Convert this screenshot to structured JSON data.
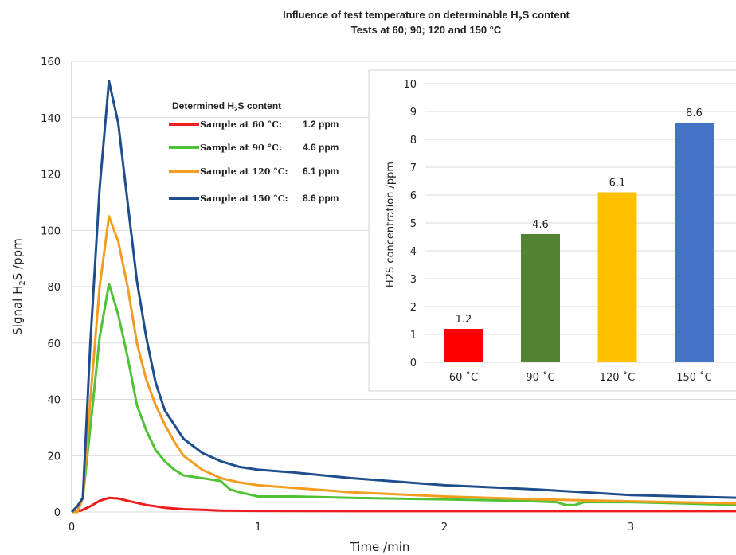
{
  "chart_data": [
    {
      "type": "line",
      "title_line1_parts": [
        "Influence of test temperature on determinable H",
        "2",
        "S content"
      ],
      "title_line2": "Tests at 60; 90; 120 and 150 °C",
      "xlabel": "Time /min",
      "ylabel_parts": [
        "Signal H",
        "2",
        "S /ppm"
      ],
      "xlim": [
        0,
        3.6
      ],
      "ylim": [
        0,
        160
      ],
      "x_ticks": [
        "0",
        "1",
        "2",
        "3"
      ],
      "y_ticks": [
        "0",
        "20",
        "40",
        "60",
        "80",
        "100",
        "120",
        "140",
        "160"
      ],
      "grid": "horizontal",
      "legend": {
        "title_parts": [
          "Determined H",
          "2",
          "S content"
        ],
        "placement": "top-left inside plot",
        "entries": [
          {
            "label": "Sample at  60 °C:",
            "value": "1.2 ppm",
            "series": 0
          },
          {
            "label": "Sample at  90 °C:",
            "value": "4.6 ppm",
            "series": 1
          },
          {
            "label": "Sample at 120 °C:",
            "value": "6.1 ppm",
            "series": 2
          },
          {
            "label": "Sample at 150 °C:",
            "value": "8.6 ppm",
            "series": 3
          }
        ]
      },
      "series": [
        {
          "color": "#ee1c1c",
          "points": [
            [
              0,
              0
            ],
            [
              0.05,
              0.5
            ],
            [
              0.1,
              2
            ],
            [
              0.15,
              4
            ],
            [
              0.2,
              5
            ],
            [
              0.25,
              4.8
            ],
            [
              0.3,
              4
            ],
            [
              0.4,
              2.5
            ],
            [
              0.5,
              1.5
            ],
            [
              0.6,
              1
            ],
            [
              0.7,
              0.8
            ],
            [
              0.8,
              0.5
            ],
            [
              1,
              0.4
            ],
            [
              1.5,
              0.3
            ],
            [
              2,
              0.3
            ],
            [
              2.5,
              0.3
            ],
            [
              3,
              0.3
            ],
            [
              3.6,
              0.3
            ]
          ]
        },
        {
          "color": "#4fc236",
          "points": [
            [
              0,
              0
            ],
            [
              0.03,
              0
            ],
            [
              0.06,
              5
            ],
            [
              0.1,
              30
            ],
            [
              0.15,
              62
            ],
            [
              0.2,
              81
            ],
            [
              0.25,
              70
            ],
            [
              0.3,
              55
            ],
            [
              0.35,
              38
            ],
            [
              0.4,
              29
            ],
            [
              0.45,
              22
            ],
            [
              0.5,
              18
            ],
            [
              0.55,
              15
            ],
            [
              0.6,
              13
            ],
            [
              0.7,
              12
            ],
            [
              0.8,
              11
            ],
            [
              0.85,
              8
            ],
            [
              0.9,
              7
            ],
            [
              1,
              5.5
            ],
            [
              1.2,
              5.5
            ],
            [
              1.5,
              5
            ],
            [
              2,
              4.5
            ],
            [
              2.4,
              4
            ],
            [
              2.6,
              3.5
            ],
            [
              2.65,
              2.5
            ],
            [
              2.7,
              2.5
            ],
            [
              2.75,
              3.5
            ],
            [
              3,
              3.5
            ],
            [
              3.3,
              3
            ],
            [
              3.6,
              2.5
            ]
          ]
        },
        {
          "color": "#f39c1f",
          "points": [
            [
              0,
              0
            ],
            [
              0.03,
              0
            ],
            [
              0.06,
              5
            ],
            [
              0.1,
              40
            ],
            [
              0.15,
              80
            ],
            [
              0.2,
              105
            ],
            [
              0.25,
              96
            ],
            [
              0.3,
              80
            ],
            [
              0.35,
              60
            ],
            [
              0.4,
              47
            ],
            [
              0.45,
              38
            ],
            [
              0.5,
              31
            ],
            [
              0.55,
              25
            ],
            [
              0.6,
              20
            ],
            [
              0.7,
              15
            ],
            [
              0.8,
              12
            ],
            [
              0.9,
              10.5
            ],
            [
              1,
              9.5
            ],
            [
              1.2,
              8.5
            ],
            [
              1.5,
              7
            ],
            [
              2,
              5.5
            ],
            [
              2.5,
              4.5
            ],
            [
              3,
              3.8
            ],
            [
              3.6,
              3
            ]
          ]
        },
        {
          "color": "#1f4e8c",
          "points": [
            [
              0,
              0
            ],
            [
              0.03,
              2
            ],
            [
              0.06,
              5
            ],
            [
              0.1,
              60
            ],
            [
              0.15,
              115
            ],
            [
              0.2,
              153
            ],
            [
              0.25,
              138
            ],
            [
              0.3,
              110
            ],
            [
              0.35,
              82
            ],
            [
              0.4,
              62
            ],
            [
              0.45,
              46
            ],
            [
              0.5,
              36
            ],
            [
              0.55,
              31
            ],
            [
              0.6,
              26
            ],
            [
              0.7,
              21
            ],
            [
              0.8,
              18
            ],
            [
              0.9,
              16
            ],
            [
              1,
              15
            ],
            [
              1.2,
              14
            ],
            [
              1.5,
              12
            ],
            [
              2,
              9.5
            ],
            [
              2.5,
              8
            ],
            [
              3,
              6
            ],
            [
              3.6,
              5
            ]
          ]
        }
      ]
    },
    {
      "type": "bar",
      "ylabel": "H2S concentration  /ppm",
      "ylim": [
        0,
        10
      ],
      "y_ticks": [
        "0",
        "1",
        "2",
        "3",
        "4",
        "5",
        "6",
        "7",
        "8",
        "9",
        "10"
      ],
      "grid": "horizontal",
      "categories": [
        "60 ˚C",
        "90 ˚C",
        "120 ˚C",
        "150 ˚C"
      ],
      "values": [
        1.2,
        4.6,
        6.1,
        8.6
      ],
      "value_labels": [
        "1.2",
        "4.6",
        "6.1",
        "8.6"
      ],
      "colors": [
        "#ff0000",
        "#548235",
        "#ffc000",
        "#4472c4"
      ]
    }
  ]
}
